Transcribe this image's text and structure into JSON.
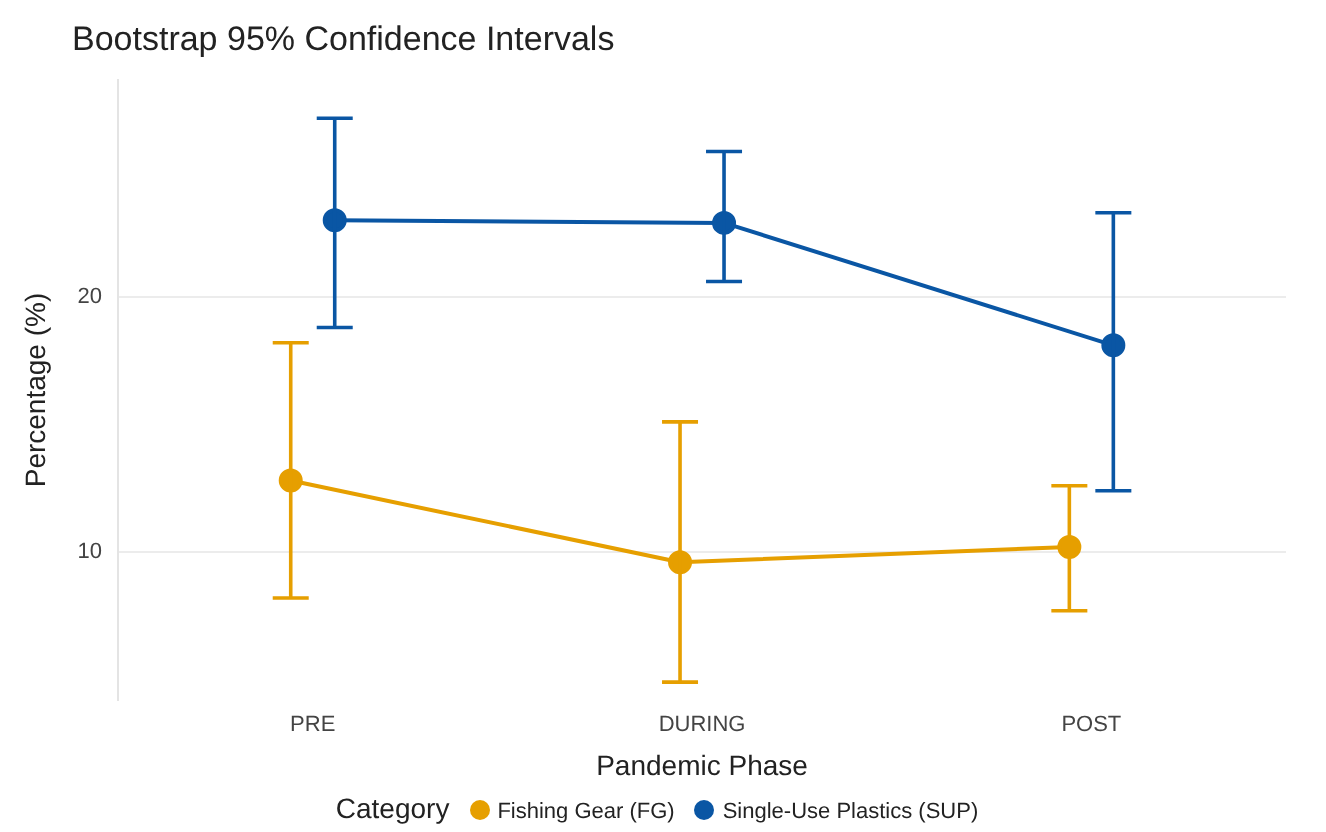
{
  "chart_data": {
    "type": "line",
    "title": "Bootstrap 95% Confidence Intervals",
    "xlabel": "Pandemic Phase",
    "ylabel": "Percentage (%)",
    "legend_title": "Category",
    "categories": [
      "PRE",
      "DURING",
      "POST"
    ],
    "series": [
      {
        "name": "Fishing Gear (FG)",
        "color": "#e69f00",
        "values": [
          12.8,
          9.6,
          10.2
        ],
        "errors": [
          [
            8.2,
            18.2
          ],
          [
            4.9,
            15.1
          ],
          [
            7.7,
            12.6
          ]
        ]
      },
      {
        "name": "Single-Use Plastics (SUP)",
        "color": "#0a56a4",
        "values": [
          23.0,
          22.9,
          18.1
        ],
        "errors": [
          [
            18.8,
            27.0
          ],
          [
            20.6,
            25.7
          ],
          [
            12.4,
            23.3
          ]
        ]
      }
    ],
    "ylim": [
      4.2,
      28.5
    ],
    "yticks": [
      10,
      20
    ],
    "grid": "y",
    "legend": "bottom",
    "marker": "circle",
    "line_style": "solid"
  }
}
